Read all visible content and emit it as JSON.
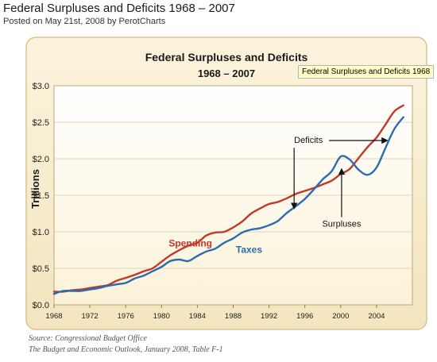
{
  "page": {
    "title": "Federal Surpluses and Deficits 1968 – 2007",
    "meta": "Posted on May 21st, 2008 by PerotCharts",
    "tooltip": "Federal Surpluses and Deficits 1968",
    "source_line1": "Source: Congressional Budget Office",
    "source_line2": "The Budget and Economic Outlook, January 2008, Table F-1"
  },
  "colors": {
    "spending": "#c0392b",
    "taxes": "#2b6cb0",
    "panel_bg": "#fdf6e1",
    "card_border": "#d9c89a"
  },
  "chart_data": {
    "type": "line",
    "title_line1": "Federal Surpluses and Deficits",
    "title_line2": "1968 – 2007",
    "xlabel": "",
    "ylabel": "Trillions",
    "xlim": [
      1968,
      2008
    ],
    "ylim": [
      0,
      3.0
    ],
    "x_ticks": [
      1968,
      1972,
      1976,
      1980,
      1984,
      1988,
      1992,
      1996,
      2000,
      2004
    ],
    "y_ticks": [
      {
        "value": 0,
        "label": "$0.0"
      },
      {
        "value": 0.5,
        "label": "$0.5"
      },
      {
        "value": 1.0,
        "label": "$1.0"
      },
      {
        "value": 1.5,
        "label": "$1.5"
      },
      {
        "value": 2.0,
        "label": "$2.0"
      },
      {
        "value": 2.5,
        "label": "$2.5"
      },
      {
        "value": 3.0,
        "label": "$3.0"
      }
    ],
    "grid": true,
    "x": [
      1968,
      1969,
      1970,
      1971,
      1972,
      1973,
      1974,
      1975,
      1976,
      1977,
      1978,
      1979,
      1980,
      1981,
      1982,
      1983,
      1984,
      1985,
      1986,
      1987,
      1988,
      1989,
      1990,
      1991,
      1992,
      1993,
      1994,
      1995,
      1996,
      1997,
      1998,
      1999,
      2000,
      2001,
      2002,
      2003,
      2004,
      2005,
      2006,
      2007
    ],
    "series": [
      {
        "name": "Spending",
        "values": [
          0.18,
          0.18,
          0.2,
          0.21,
          0.23,
          0.25,
          0.27,
          0.33,
          0.37,
          0.41,
          0.46,
          0.5,
          0.59,
          0.68,
          0.75,
          0.81,
          0.85,
          0.95,
          0.99,
          1.0,
          1.06,
          1.14,
          1.25,
          1.32,
          1.38,
          1.41,
          1.46,
          1.52,
          1.56,
          1.6,
          1.65,
          1.7,
          1.79,
          1.86,
          2.01,
          2.16,
          2.29,
          2.47,
          2.65,
          2.73
        ]
      },
      {
        "name": "Taxes",
        "values": [
          0.15,
          0.19,
          0.19,
          0.19,
          0.21,
          0.23,
          0.26,
          0.28,
          0.3,
          0.36,
          0.4,
          0.46,
          0.52,
          0.6,
          0.62,
          0.6,
          0.67,
          0.73,
          0.77,
          0.85,
          0.91,
          0.99,
          1.03,
          1.05,
          1.09,
          1.15,
          1.26,
          1.35,
          1.45,
          1.58,
          1.72,
          1.83,
          2.03,
          1.99,
          1.85,
          1.78,
          1.88,
          2.15,
          2.41,
          2.57
        ]
      }
    ],
    "annotations": [
      {
        "text": "Deficits"
      },
      {
        "text": "Surpluses"
      }
    ]
  }
}
